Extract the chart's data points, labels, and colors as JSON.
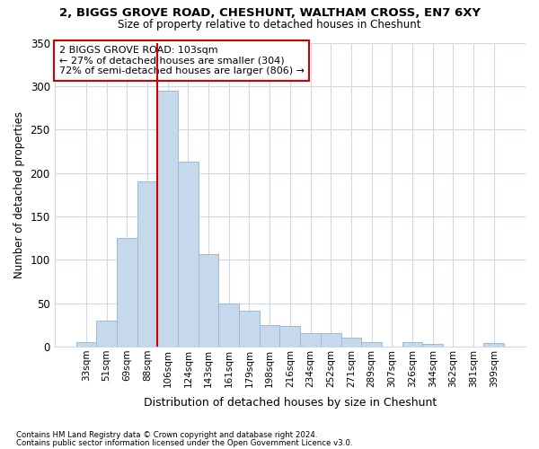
{
  "title1": "2, BIGGS GROVE ROAD, CHESHUNT, WALTHAM CROSS, EN7 6XY",
  "title2": "Size of property relative to detached houses in Cheshunt",
  "xlabel": "Distribution of detached houses by size in Cheshunt",
  "ylabel": "Number of detached properties",
  "categories": [
    "33sqm",
    "51sqm",
    "69sqm",
    "88sqm",
    "106sqm",
    "124sqm",
    "143sqm",
    "161sqm",
    "179sqm",
    "198sqm",
    "216sqm",
    "234sqm",
    "252sqm",
    "271sqm",
    "289sqm",
    "307sqm",
    "326sqm",
    "344sqm",
    "362sqm",
    "381sqm",
    "399sqm"
  ],
  "values": [
    5,
    30,
    125,
    190,
    295,
    213,
    107,
    50,
    41,
    25,
    24,
    16,
    15,
    10,
    5,
    0,
    5,
    3,
    0,
    0,
    4
  ],
  "bar_color": "#c5d8ec",
  "bar_edge_color": "#9bbbd4",
  "vline_color": "#cc0000",
  "vline_x_index": 4,
  "annotation_text": "2 BIGGS GROVE ROAD: 103sqm\n← 27% of detached houses are smaller (304)\n72% of semi-detached houses are larger (806) →",
  "annotation_box_color": "#ffffff",
  "annotation_box_edge": "#cc0000",
  "footer1": "Contains HM Land Registry data © Crown copyright and database right 2024.",
  "footer2": "Contains public sector information licensed under the Open Government Licence v3.0.",
  "ylim": [
    0,
    350
  ],
  "yticks": [
    0,
    50,
    100,
    150,
    200,
    250,
    300,
    350
  ],
  "background_color": "#ffffff",
  "grid_color": "#d0d8e8"
}
